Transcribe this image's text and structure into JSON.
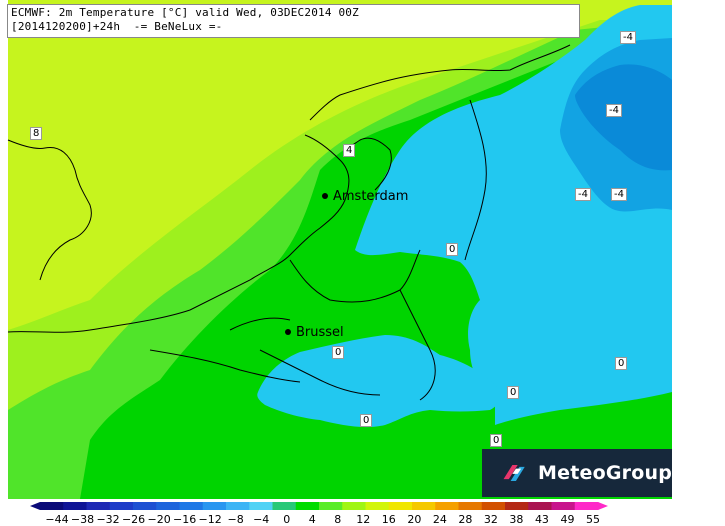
{
  "header": {
    "line1": "ECMWF: 2m Temperature [°C] valid Wed, 03DEC2014 00Z",
    "line2": "[2014120200]+24h  -= BeNeLux =-"
  },
  "cities": [
    {
      "name": "Amsterdam"
    },
    {
      "name": "Brussel"
    }
  ],
  "contour_labels": [
    "-4",
    "-4",
    "-4",
    "-4",
    "4",
    "8",
    "0",
    "0",
    "0",
    "0",
    "0",
    "0",
    "0"
  ],
  "colorbar": {
    "ticks": [
      "-44",
      "-38",
      "-32",
      "-26",
      "-20",
      "-16",
      "-12",
      "-8",
      "-4",
      "0",
      "4",
      "8",
      "12",
      "16",
      "20",
      "24",
      "28",
      "32",
      "38",
      "43",
      "49",
      "55"
    ],
    "colors": [
      "#0a0a78",
      "#0f1496",
      "#1e28b4",
      "#1e3cc8",
      "#1e50d2",
      "#1e64dc",
      "#1e78e6",
      "#2896f0",
      "#3cb4f5",
      "#50d2f5",
      "#28c878",
      "#00dc00",
      "#5aec28",
      "#a0f514",
      "#d2f50a",
      "#f0e600",
      "#f5c800",
      "#f5a000",
      "#e67800",
      "#d25000",
      "#b42814",
      "#aa1450",
      "#c8148c",
      "#ff28c8"
    ]
  },
  "logo": {
    "text": "MeteoGroup"
  },
  "colors": {
    "cold_deep": "#0a87d6",
    "cold": "#1ab0e8",
    "zero": "#00c8f0",
    "mild_green": "#00dc00",
    "green_light": "#3cea2c",
    "yellow_green": "#a8f21e",
    "lime": "#c8f51c"
  }
}
